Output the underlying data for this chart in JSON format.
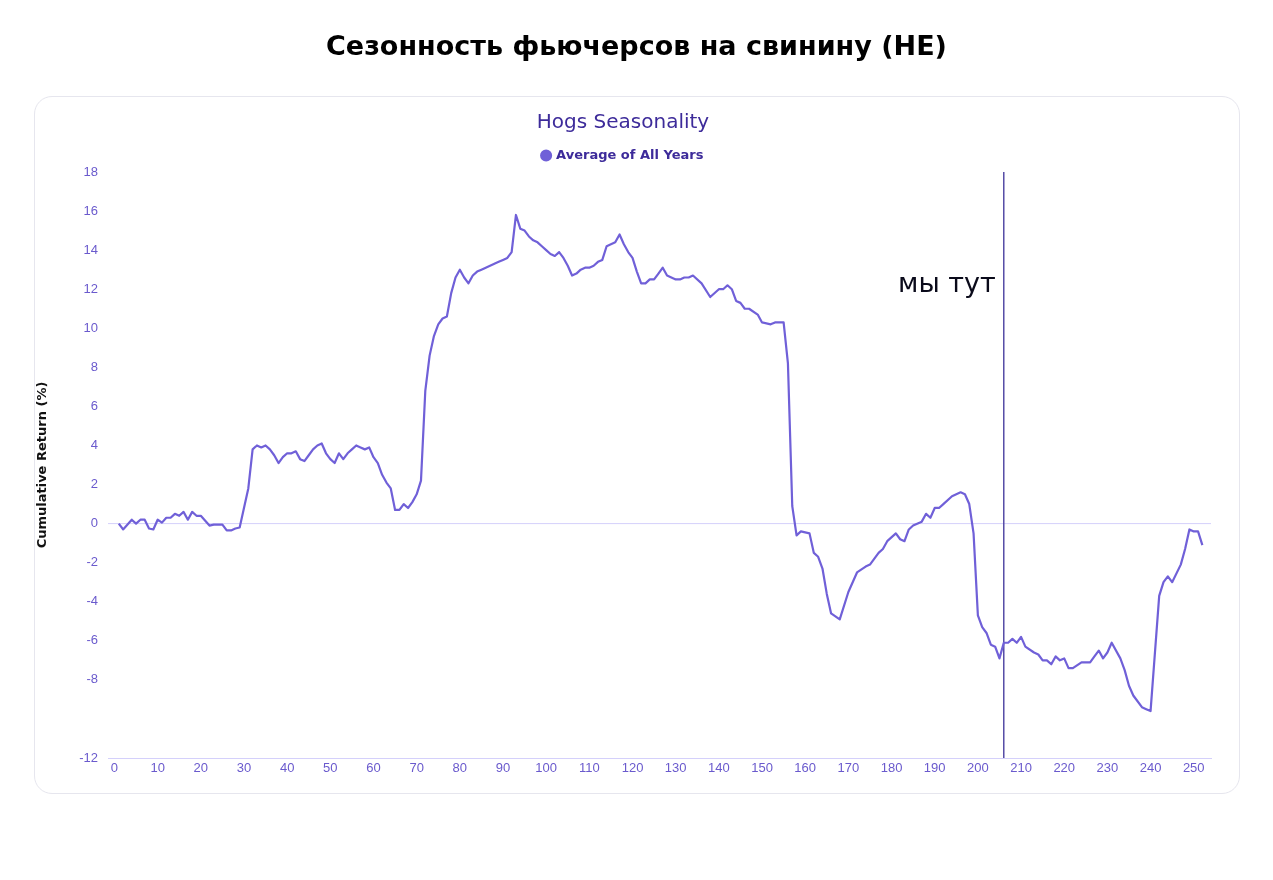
{
  "chart_data": {
    "type": "line",
    "title": "Сезонность фьючерсов на свинину (HE)",
    "subtitle": "Hogs Seasonality",
    "ylabel": "Cumulative Return (%)",
    "legend": "top",
    "marker": "none",
    "line_style": "solid",
    "xlim": [
      -1.5,
      254
    ],
    "xticks": [
      0,
      10,
      20,
      30,
      40,
      50,
      60,
      70,
      80,
      90,
      100,
      110,
      120,
      130,
      140,
      150,
      160,
      170,
      180,
      190,
      200,
      210,
      220,
      230,
      240,
      250
    ],
    "ylim": [
      -12,
      18
    ],
    "yticks": [
      18,
      16,
      14,
      12,
      10,
      8,
      6,
      4,
      2,
      0,
      -2,
      -4,
      -6,
      -8,
      -12
    ],
    "ref_lines": [
      {
        "axis": "y",
        "value": 0,
        "color": "#d4d0fb"
      },
      {
        "axis": "x",
        "value": 206,
        "label": "мы тут",
        "color": "#4a3fa0"
      }
    ],
    "series": [
      {
        "name": "Average of All Years",
        "color": "#7060d8",
        "x": [
          1,
          2,
          4,
          5,
          6,
          7,
          8,
          9,
          10,
          11,
          12,
          13,
          14,
          15,
          16,
          17,
          18,
          19,
          20,
          22,
          23,
          25,
          26,
          27,
          28,
          29,
          31,
          32,
          33,
          34,
          35,
          36,
          37,
          38,
          39,
          40,
          41,
          42,
          43,
          44,
          45,
          46,
          47,
          48,
          49,
          50,
          51,
          52,
          53,
          54,
          55,
          56,
          57,
          58,
          59,
          60,
          61,
          62,
          63,
          64,
          65,
          66,
          67,
          68,
          69,
          70,
          71,
          72,
          73,
          74,
          75,
          76,
          77,
          78,
          79,
          80,
          81,
          82,
          83,
          84,
          85,
          86,
          87,
          88,
          89,
          90,
          91,
          92,
          93,
          94,
          95,
          96,
          97,
          98,
          99,
          100,
          101,
          102,
          103,
          104,
          105,
          106,
          107,
          108,
          109,
          110,
          111,
          112,
          113,
          114,
          115,
          116,
          117,
          118,
          119,
          120,
          121,
          122,
          123,
          124,
          125,
          126,
          127,
          128,
          129,
          130,
          131,
          132,
          133,
          134,
          136,
          138,
          140,
          141,
          142,
          143,
          144,
          145,
          146,
          147,
          149,
          150,
          152,
          153,
          155,
          156,
          157,
          158,
          159,
          161,
          162,
          163,
          164,
          165,
          166,
          168,
          170,
          172,
          174,
          175,
          177,
          178,
          179,
          181,
          182,
          183,
          184,
          185,
          187,
          188,
          189,
          190,
          191,
          192,
          194,
          196,
          197,
          198,
          199,
          200,
          201,
          202,
          203,
          204,
          205,
          206,
          207,
          208,
          209,
          210,
          211,
          213,
          214,
          215,
          216,
          217,
          218,
          219,
          220,
          221,
          222,
          224,
          225,
          226,
          227,
          228,
          229,
          230,
          231,
          233,
          234,
          235,
          236,
          238,
          239,
          240,
          242,
          243,
          244,
          245,
          247,
          248,
          249,
          250,
          251,
          252
        ],
        "values": [
          0,
          -0.3,
          0.2,
          0,
          0.2,
          0.2,
          -0.25,
          -0.3,
          0.2,
          0.05,
          0.3,
          0.3,
          0.5,
          0.4,
          0.6,
          0.2,
          0.6,
          0.4,
          0.4,
          -0.1,
          -0.05,
          -0.05,
          -0.35,
          -0.35,
          -0.25,
          -0.2,
          1.8,
          3.8,
          4,
          3.9,
          4,
          3.8,
          3.5,
          3.1,
          3.4,
          3.6,
          3.6,
          3.7,
          3.3,
          3.2,
          3.5,
          3.8,
          4,
          4.1,
          3.6,
          3.3,
          3.1,
          3.6,
          3.3,
          3.6,
          3.8,
          4,
          3.9,
          3.8,
          3.9,
          3.4,
          3.1,
          2.5,
          2.1,
          1.8,
          0.7,
          0.7,
          1,
          0.8,
          1.1,
          1.5,
          2.2,
          6.8,
          8.6,
          9.6,
          10.2,
          10.5,
          10.6,
          11.8,
          12.6,
          13,
          12.6,
          12.3,
          12.7,
          12.9,
          13,
          13.1,
          13.2,
          13.3,
          13.4,
          13.5,
          13.6,
          13.9,
          15.8,
          15.1,
          15,
          14.7,
          14.5,
          14.4,
          14.2,
          14,
          13.8,
          13.7,
          13.9,
          13.6,
          13.2,
          12.7,
          12.8,
          13,
          13.1,
          13.1,
          13.2,
          13.4,
          13.5,
          14.2,
          14.3,
          14.4,
          14.8,
          14.3,
          13.9,
          13.6,
          12.9,
          12.3,
          12.3,
          12.5,
          12.5,
          12.8,
          13.1,
          12.7,
          12.6,
          12.5,
          12.5,
          12.6,
          12.6,
          12.7,
          12.3,
          11.6,
          12,
          12,
          12.2,
          12,
          11.4,
          11.3,
          11,
          11,
          10.7,
          10.3,
          10.2,
          10.3,
          10.3,
          8.2,
          0.9,
          -0.6,
          -0.4,
          -0.5,
          -1.5,
          -1.7,
          -2.3,
          -3.6,
          -4.6,
          -4.9,
          -3.5,
          -2.5,
          -2.2,
          -2.1,
          -1.5,
          -1.3,
          -0.9,
          -0.5,
          -0.8,
          -0.9,
          -0.3,
          -0.1,
          0.1,
          0.5,
          0.3,
          0.8,
          0.8,
          1,
          1.4,
          1.6,
          1.5,
          1,
          -0.5,
          -4.7,
          -5.3,
          -5.6,
          -6.2,
          -6.3,
          -6.9,
          -6.1,
          -6.1,
          -5.9,
          -6.1,
          -5.8,
          -6.3,
          -6.6,
          -6.7,
          -7,
          -7,
          -7.2,
          -6.8,
          -7,
          -6.9,
          -7.4,
          -7.4,
          -7.1,
          -7.1,
          -7.1,
          -6.8,
          -6.5,
          -6.9,
          -6.6,
          -6.1,
          -6.9,
          -7.5,
          -8.3,
          -8.8,
          -9.4,
          -9.5,
          -9.6,
          -3.7,
          -3,
          -2.7,
          -3,
          -2.1,
          -1.3,
          -0.3,
          -0.4,
          -0.4,
          -1.1
        ]
      }
    ]
  }
}
